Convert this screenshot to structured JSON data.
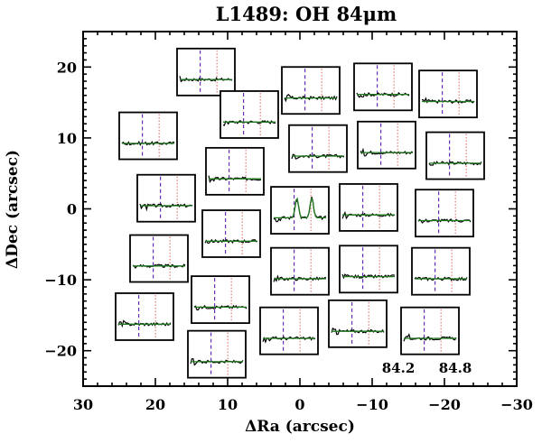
{
  "chart_data": {
    "type": "spectral-map",
    "title": "L1489: OH 84μm",
    "xlabel": "ΔRa (arcsec)",
    "ylabel": "ΔDec (arcsec)",
    "xlim": [
      30,
      -30
    ],
    "ylim": [
      -25,
      25
    ],
    "x_ticks": [
      30,
      20,
      10,
      0,
      -10,
      -20,
      -30
    ],
    "y_ticks": [
      -20,
      -10,
      0,
      10,
      20
    ],
    "spectrum_wavelength_range": [
      84.2,
      84.8
    ],
    "wavelength_labels": [
      "84.2",
      "84.8"
    ],
    "line_markers": [
      {
        "color": "#6a2fb0",
        "style": "dashed"
      },
      {
        "color": "#e0605a",
        "style": "dotted"
      }
    ],
    "spectrum_color": "#1f7a1f",
    "spaxels": [
      {
        "ra": 13,
        "dec": 19.3,
        "peak": false
      },
      {
        "ra": -1.5,
        "dec": 16.7,
        "peak": false
      },
      {
        "ra": -11.5,
        "dec": 17.2,
        "peak": false
      },
      {
        "ra": -20.5,
        "dec": 16.2,
        "peak": false
      },
      {
        "ra": 21,
        "dec": 10.3,
        "peak": false
      },
      {
        "ra": 7,
        "dec": 13.3,
        "peak": false
      },
      {
        "ra": -2.5,
        "dec": 8.5,
        "peak": false
      },
      {
        "ra": -12,
        "dec": 9,
        "peak": false
      },
      {
        "ra": -21.5,
        "dec": 7.5,
        "peak": false
      },
      {
        "ra": 18.5,
        "dec": 1.5,
        "peak": false
      },
      {
        "ra": 9,
        "dec": 5.3,
        "peak": false
      },
      {
        "ra": 0,
        "dec": -0.2,
        "peak": true
      },
      {
        "ra": -9.5,
        "dec": 0.2,
        "peak": false
      },
      {
        "ra": -20,
        "dec": -0.6,
        "peak": false
      },
      {
        "ra": 19.5,
        "dec": -7,
        "peak": false
      },
      {
        "ra": 9.5,
        "dec": -3.5,
        "peak": false
      },
      {
        "ra": 0,
        "dec": -8.8,
        "peak": false
      },
      {
        "ra": -9.5,
        "dec": -8.5,
        "peak": false
      },
      {
        "ra": -19.5,
        "dec": -8.8,
        "peak": false
      },
      {
        "ra": 21.5,
        "dec": -15.2,
        "peak": false
      },
      {
        "ra": 11,
        "dec": -12.8,
        "peak": false
      },
      {
        "ra": 1.5,
        "dec": -17.2,
        "peak": false
      },
      {
        "ra": -8,
        "dec": -16.2,
        "peak": false
      },
      {
        "ra": -18,
        "dec": -17.2,
        "peak": false
      },
      {
        "ra": 11.5,
        "dec": -20.5,
        "peak": false
      }
    ]
  }
}
